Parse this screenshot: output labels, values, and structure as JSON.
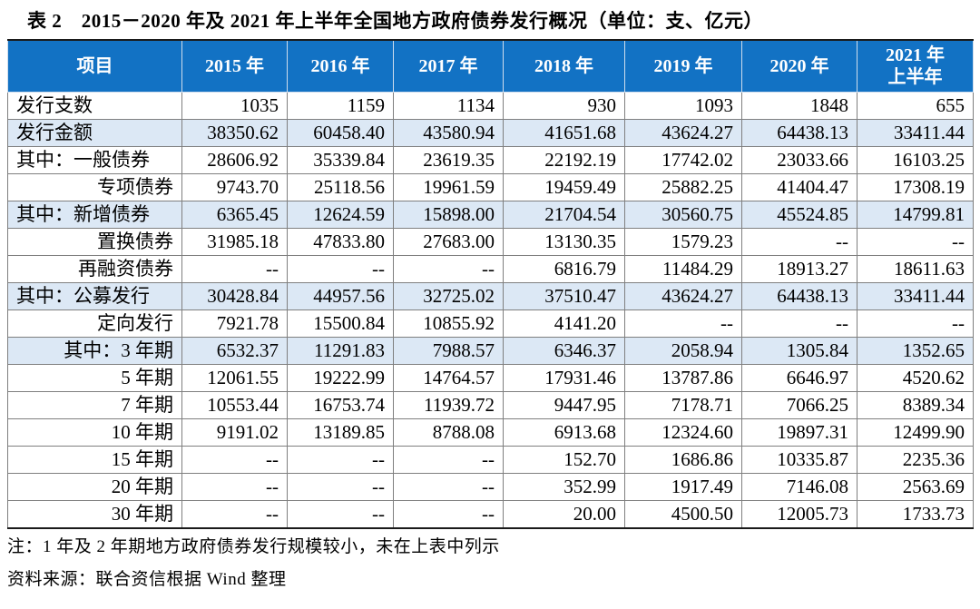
{
  "title": "表 2　2015－2020 年及 2021 年上半年全国地方政府债券发行概况（单位：支、亿元）",
  "colors": {
    "header-bg": "#1272c4",
    "header-text": "#ffffff",
    "row-shade": "#dce8f5",
    "grid-line": "#7f7f7f"
  },
  "chart_data": {
    "type": "table",
    "title": "2015－2020 年及 2021 年上半年全国地方政府债券发行概况",
    "units": "支、亿元",
    "columns": [
      "项目",
      "2015 年",
      "2016 年",
      "2017 年",
      "2018 年",
      "2019 年",
      "2020 年",
      "2021 年\n上半年"
    ],
    "rows": [
      {
        "label": "发行支数",
        "align": "left",
        "shaded": false,
        "values": [
          "1035",
          "1159",
          "1134",
          "930",
          "1093",
          "1848",
          "655"
        ]
      },
      {
        "label": "发行金额",
        "align": "left",
        "shaded": true,
        "values": [
          "38350.62",
          "60458.40",
          "43580.94",
          "41651.68",
          "43624.27",
          "64438.13",
          "33411.44"
        ]
      },
      {
        "label": "其中：一般债券",
        "align": "left",
        "shaded": false,
        "values": [
          "28606.92",
          "35339.84",
          "23619.35",
          "22192.19",
          "17742.02",
          "23033.66",
          "16103.25"
        ]
      },
      {
        "label": "专项债券",
        "align": "right",
        "shaded": false,
        "values": [
          "9743.70",
          "25118.56",
          "19961.59",
          "19459.49",
          "25882.25",
          "41404.47",
          "17308.19"
        ]
      },
      {
        "label": "其中：新增债券",
        "align": "left",
        "shaded": true,
        "values": [
          "6365.45",
          "12624.59",
          "15898.00",
          "21704.54",
          "30560.75",
          "45524.85",
          "14799.81"
        ]
      },
      {
        "label": "置换债券",
        "align": "right",
        "shaded": false,
        "values": [
          "31985.18",
          "47833.80",
          "27683.00",
          "13130.35",
          "1579.23",
          "--",
          "--"
        ]
      },
      {
        "label": "再融资债券",
        "align": "right",
        "shaded": false,
        "values": [
          "--",
          "--",
          "--",
          "6816.79",
          "11484.29",
          "18913.27",
          "18611.63"
        ]
      },
      {
        "label": "其中：公募发行",
        "align": "left",
        "shaded": true,
        "values": [
          "30428.84",
          "44957.56",
          "32725.02",
          "37510.47",
          "43624.27",
          "64438.13",
          "33411.44"
        ]
      },
      {
        "label": "定向发行",
        "align": "right",
        "shaded": false,
        "values": [
          "7921.78",
          "15500.84",
          "10855.92",
          "4141.20",
          "--",
          "--",
          "--"
        ]
      },
      {
        "label": "其中：3 年期",
        "align": "right",
        "shaded": true,
        "values": [
          "6532.37",
          "11291.83",
          "7988.57",
          "6346.37",
          "2058.94",
          "1305.84",
          "1352.65"
        ]
      },
      {
        "label": "5 年期",
        "align": "right",
        "shaded": false,
        "values": [
          "12061.55",
          "19222.99",
          "14764.57",
          "17931.46",
          "13787.86",
          "6646.97",
          "4520.62"
        ]
      },
      {
        "label": "7 年期",
        "align": "right",
        "shaded": false,
        "values": [
          "10553.44",
          "16753.74",
          "11939.72",
          "9447.95",
          "7178.71",
          "7066.25",
          "8389.34"
        ]
      },
      {
        "label": "10 年期",
        "align": "right",
        "shaded": false,
        "values": [
          "9191.02",
          "13189.85",
          "8788.08",
          "6913.68",
          "12324.60",
          "19897.31",
          "12499.90"
        ]
      },
      {
        "label": "15 年期",
        "align": "right",
        "shaded": false,
        "values": [
          "--",
          "--",
          "--",
          "152.70",
          "1686.86",
          "10335.87",
          "2235.36"
        ]
      },
      {
        "label": "20 年期",
        "align": "right",
        "shaded": false,
        "values": [
          "--",
          "--",
          "--",
          "352.99",
          "1917.49",
          "7146.08",
          "2563.69"
        ]
      },
      {
        "label": "30 年期",
        "align": "right",
        "shaded": false,
        "values": [
          "--",
          "--",
          "--",
          "20.00",
          "4500.50",
          "12005.73",
          "1733.73"
        ]
      }
    ]
  },
  "notes": [
    "注：1 年及 2 年期地方政府债券发行规模较小，未在上表中列示",
    "资料来源：联合资信根据 Wind 整理"
  ]
}
